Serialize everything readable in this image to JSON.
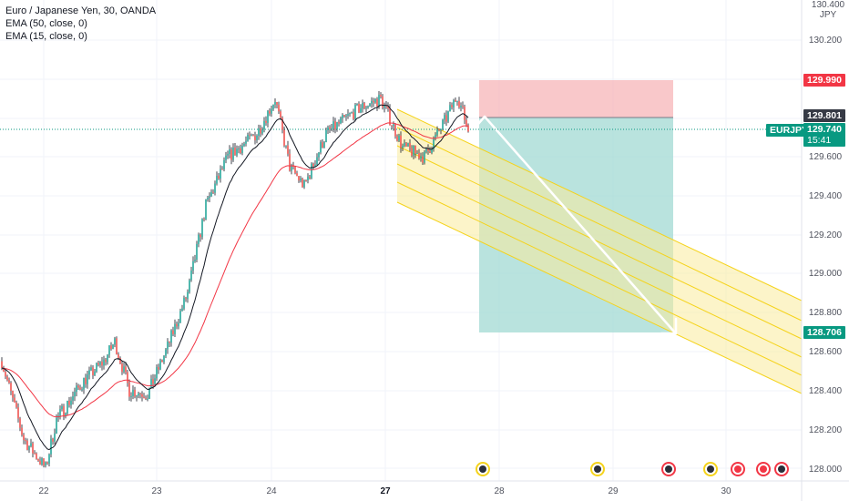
{
  "legend": {
    "title": "Euro / Japanese Yen, 30, OANDA",
    "ema50": "EMA (50, close, 0)",
    "ema15": "EMA (15, close, 0)"
  },
  "y_axis": {
    "unit_top": "130.400",
    "unit": "JPY",
    "ticks": [
      "130.200",
      "129.600",
      "129.400",
      "129.200",
      "129.000",
      "128.800",
      "128.600",
      "128.400",
      "128.200",
      "128.000"
    ]
  },
  "x_axis": {
    "ticks": [
      "22",
      "23",
      "24",
      "27",
      "28",
      "29",
      "30"
    ]
  },
  "price_tags": {
    "stop": "129.990",
    "entry": "129.801",
    "symbol": "EURJPY",
    "current": "129.740",
    "countdown": "15:41",
    "target": "128.706"
  },
  "colors": {
    "up": "#26a69a",
    "down": "#ef5350",
    "candle": "#131722",
    "ema50": "#f23645",
    "ema15": "#131722",
    "stop_zone": "#f7b6b8",
    "target_zone": "#a1d9d3",
    "channel": "#f5d31b",
    "tag_red": "#f23645",
    "tag_green": "#089981",
    "tag_dark": "#363a45"
  },
  "chart_data": {
    "type": "candlestick",
    "symbol": "EURJPY",
    "interval": "30",
    "source": "OANDA",
    "ylim": [
      128.0,
      130.4
    ],
    "stop_level": 129.99,
    "entry_level": 129.801,
    "target_level": 128.706,
    "current_price": 129.74,
    "events": [
      {
        "type": "economic-event",
        "date": "28"
      },
      {
        "type": "economic-event",
        "date": "29"
      },
      {
        "type": "economic-event",
        "date": "29"
      },
      {
        "type": "economic-event",
        "date": "30"
      },
      {
        "type": "economic-event",
        "date": "30"
      },
      {
        "type": "economic-event",
        "date": "30"
      },
      {
        "type": "economic-event",
        "date": "30"
      }
    ]
  }
}
